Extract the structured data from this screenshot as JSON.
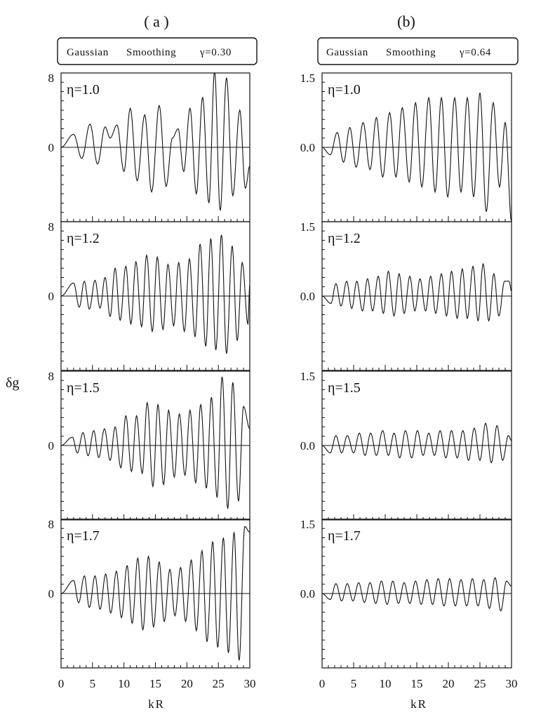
{
  "figure": {
    "ylabel": "δg",
    "xlabel": "kR",
    "x_ticklabels": [
      "0",
      "5",
      "10",
      "15",
      "20",
      "25",
      "30"
    ]
  },
  "columns": [
    {
      "label": "( a )",
      "box": {
        "method": "Gaussian",
        "smoothing": "Smoothing",
        "gamma": "γ=0.30"
      },
      "ytick_top": "8",
      "ytick_zero": "0"
    },
    {
      "label": "(b)",
      "box": {
        "method": "Gaussian",
        "smoothing": "Smoothing",
        "gamma": "γ=0.64"
      },
      "ytick_top": "1.5",
      "ytick_zero": "0.0"
    }
  ],
  "chart_data": [
    {
      "type": "line",
      "column": "a",
      "eta_label": "η=1.0",
      "xlim": [
        0,
        30
      ],
      "ylim": [
        -8,
        8
      ],
      "ytick_labels": [
        "8",
        "0"
      ],
      "series": [
        {
          "x_peaks": [
            0,
            2,
            3.3,
            4.6,
            5.8,
            7,
            7.8,
            8.9,
            10,
            11,
            12.1,
            13.3,
            14.4,
            15.6,
            16.7,
            17.7,
            18.6,
            19.5,
            20.5,
            21.5,
            22.5,
            23.5,
            24.4,
            25.3,
            26.3,
            27.3,
            28.4,
            29.3,
            30
          ],
          "y_peaks": [
            0,
            1.4,
            -1.2,
            2.5,
            -1.8,
            2.2,
            1.0,
            2.4,
            -2.6,
            4.2,
            -3.6,
            3.5,
            -4.8,
            4.5,
            -4.2,
            1.0,
            2.0,
            -2.6,
            4.2,
            -5.0,
            5.4,
            -6.0,
            8.2,
            -6.8,
            7.5,
            -5.2,
            4.0,
            -4.4,
            -2.0
          ]
        }
      ]
    },
    {
      "type": "line",
      "column": "a",
      "eta_label": "η=1.2",
      "xlim": [
        0,
        30
      ],
      "ylim": [
        -8,
        8
      ],
      "ytick_labels": [
        "8",
        "0"
      ],
      "series": [
        {
          "x_peaks": [
            0,
            2,
            2.9,
            3.7,
            4.5,
            5.4,
            6.2,
            7,
            7.8,
            8.6,
            9.4,
            10.3,
            11.1,
            11.9,
            12.8,
            13.6,
            14.5,
            15.3,
            16.2,
            17,
            17.9,
            18.7,
            19.6,
            20.4,
            21.3,
            22.1,
            23,
            23.8,
            24.6,
            25.5,
            26.3,
            27.2,
            28,
            28.8,
            29.7,
            30
          ],
          "y_peaks": [
            0,
            1.4,
            -1.2,
            1.6,
            -1.4,
            1.7,
            -1.3,
            2.0,
            -2.2,
            3.0,
            -2.6,
            3.2,
            -3.0,
            3.7,
            -3.3,
            4.4,
            -3.8,
            4.2,
            -3.6,
            3.4,
            -3.2,
            3.6,
            -3.8,
            4.0,
            -4.4,
            5.6,
            -5.4,
            6.2,
            -5.8,
            6.6,
            -6.2,
            5.4,
            -4.8,
            3.6,
            -3.0,
            1.2
          ]
        }
      ]
    },
    {
      "type": "line",
      "column": "a",
      "eta_label": "η=1.5",
      "xlim": [
        0,
        30
      ],
      "ylim": [
        -8,
        8
      ],
      "ytick_labels": [
        "8",
        "0"
      ],
      "series": [
        {
          "x_peaks": [
            0,
            1.8,
            2.6,
            3.5,
            4.3,
            5.2,
            6,
            6.9,
            7.8,
            8.6,
            9.5,
            10.3,
            11.2,
            12,
            12.9,
            13.7,
            14.6,
            15.4,
            16.3,
            17.1,
            18,
            18.8,
            19.7,
            20.5,
            21.4,
            22.2,
            23.1,
            23.9,
            24.8,
            25.6,
            26.5,
            27.3,
            28.2,
            29,
            30
          ],
          "y_peaks": [
            0,
            0.9,
            -0.8,
            1.4,
            -1.1,
            1.6,
            -1.3,
            1.8,
            -1.6,
            2.0,
            -2.4,
            3.2,
            -2.8,
            3.2,
            -3.0,
            4.6,
            -4.4,
            4.4,
            -4.2,
            3.8,
            -3.4,
            3.4,
            -3.2,
            3.8,
            -4.0,
            4.4,
            -4.6,
            5.2,
            -5.6,
            7.4,
            -6.8,
            6.8,
            -6.0,
            4.2,
            1.8
          ]
        }
      ]
    },
    {
      "type": "line",
      "column": "a",
      "eta_label": "η=1.7",
      "xlim": [
        0,
        30
      ],
      "ylim": [
        -8,
        8
      ],
      "ytick_labels": [
        "8",
        "0"
      ],
      "series": [
        {
          "x_peaks": [
            0,
            2,
            2.8,
            3.7,
            4.5,
            5.4,
            6.2,
            7.1,
            7.9,
            8.8,
            9.6,
            10.5,
            11.3,
            12.2,
            13,
            13.9,
            14.7,
            15.6,
            16.4,
            17.3,
            18.1,
            19,
            19.8,
            20.7,
            21.5,
            22.4,
            23.2,
            24.1,
            24.9,
            25.8,
            26.6,
            27.5,
            28.3,
            29.2,
            30
          ],
          "y_peaks": [
            0,
            1.4,
            -1.0,
            1.9,
            -1.5,
            1.9,
            -1.7,
            2.1,
            -2.1,
            2.4,
            -2.6,
            3.0,
            -3.2,
            3.8,
            -3.9,
            4.0,
            -3.6,
            3.4,
            -3.0,
            2.6,
            -2.4,
            2.8,
            -3.0,
            3.6,
            -4.0,
            4.6,
            -5.2,
            5.6,
            -5.8,
            6.0,
            -6.4,
            6.6,
            -7.2,
            7.2,
            6.6
          ]
        }
      ]
    },
    {
      "type": "line",
      "column": "b",
      "eta_label": "η=1.0",
      "xlim": [
        0,
        30
      ],
      "ylim": [
        -1.5,
        1.5
      ],
      "ytick_labels": [
        "1.5",
        "0.0"
      ],
      "series": [
        {
          "x_peaks": [
            0,
            1.3,
            2.4,
            3.4,
            4.4,
            5.4,
            6.5,
            7.6,
            8.6,
            9.6,
            10.7,
            11.7,
            12.7,
            13.8,
            14.8,
            15.8,
            16.9,
            17.9,
            18.9,
            19.9,
            21,
            22,
            23,
            24,
            25,
            26,
            27.1,
            28.1,
            29,
            30
          ],
          "y_peaks": [
            0,
            -0.15,
            0.3,
            -0.3,
            0.4,
            -0.4,
            0.5,
            -0.45,
            0.6,
            -0.6,
            0.7,
            -0.6,
            0.8,
            -0.7,
            0.9,
            -0.8,
            1.0,
            -0.9,
            1.0,
            -1.0,
            1.0,
            -0.9,
            1.0,
            -1.0,
            1.1,
            -1.3,
            0.9,
            -0.8,
            0.5,
            -1.5
          ]
        }
      ]
    },
    {
      "type": "line",
      "column": "b",
      "eta_label": "η=1.2",
      "xlim": [
        0,
        30
      ],
      "ylim": [
        -1.5,
        1.5
      ],
      "ytick_labels": [
        "1.5",
        "0.0"
      ],
      "series": [
        {
          "x_peaks": [
            0,
            1.4,
            2.2,
            3,
            3.9,
            4.7,
            5.5,
            6.4,
            7.2,
            8,
            8.9,
            9.7,
            10.5,
            11.4,
            12.2,
            13,
            13.9,
            14.7,
            15.5,
            16.4,
            17.2,
            18,
            18.9,
            19.7,
            20.5,
            21.4,
            22.2,
            23,
            23.9,
            24.7,
            25.5,
            26.4,
            27.2,
            28,
            28.9,
            29.6,
            30
          ],
          "y_peaks": [
            0,
            -0.15,
            0.25,
            -0.2,
            0.3,
            -0.25,
            0.3,
            -0.3,
            0.35,
            -0.3,
            0.4,
            -0.35,
            0.5,
            -0.4,
            0.45,
            -0.35,
            0.4,
            -0.3,
            0.35,
            -0.3,
            0.4,
            -0.35,
            0.45,
            -0.4,
            0.5,
            -0.45,
            0.55,
            -0.45,
            0.6,
            -0.5,
            0.65,
            -0.5,
            0.45,
            -0.4,
            0.3,
            0.3,
            0.1
          ]
        }
      ]
    },
    {
      "type": "line",
      "column": "b",
      "eta_label": "η=1.5",
      "xlim": [
        0,
        30
      ],
      "ylim": [
        -1.5,
        1.5
      ],
      "ytick_labels": [
        "1.5",
        "0.0"
      ],
      "series": [
        {
          "x_peaks": [
            0,
            1.3,
            2.2,
            3.1,
            4,
            5,
            5.9,
            6.8,
            7.7,
            8.6,
            9.6,
            10.5,
            11.4,
            12.3,
            13.2,
            14.2,
            15.1,
            16,
            16.9,
            17.8,
            18.7,
            19.6,
            20.5,
            21.4,
            22.3,
            23.2,
            24.1,
            25,
            25.9,
            26.8,
            27.7,
            28.6,
            29.5,
            30
          ],
          "y_peaks": [
            0,
            -0.15,
            0.2,
            -0.15,
            0.2,
            -0.15,
            0.25,
            -0.2,
            0.25,
            -0.2,
            0.3,
            -0.2,
            0.25,
            -0.25,
            0.3,
            -0.25,
            0.3,
            -0.2,
            0.25,
            -0.2,
            0.3,
            -0.25,
            0.3,
            -0.25,
            0.3,
            -0.3,
            0.35,
            -0.3,
            0.45,
            -0.35,
            0.4,
            -0.3,
            0.2,
            0.1
          ]
        }
      ]
    },
    {
      "type": "line",
      "column": "b",
      "eta_label": "η=1.7",
      "xlim": [
        0,
        30
      ],
      "ylim": [
        -1.5,
        1.5
      ],
      "ytick_labels": [
        "1.5",
        "0.0"
      ],
      "series": [
        {
          "x_peaks": [
            0,
            1.3,
            2.2,
            3.1,
            4,
            4.9,
            5.8,
            6.7,
            7.6,
            8.5,
            9.4,
            10.3,
            11.2,
            12.1,
            13,
            13.9,
            14.8,
            15.7,
            16.6,
            17.5,
            18.4,
            19.3,
            20.2,
            21.1,
            22,
            22.9,
            23.8,
            24.7,
            25.6,
            26.5,
            27.4,
            28.3,
            29.2,
            30
          ],
          "y_peaks": [
            0,
            -0.12,
            0.2,
            -0.15,
            0.2,
            -0.15,
            0.22,
            -0.18,
            0.22,
            -0.2,
            0.25,
            -0.22,
            0.25,
            -0.2,
            0.22,
            -0.2,
            0.25,
            -0.22,
            0.28,
            -0.22,
            0.3,
            -0.25,
            0.3,
            -0.25,
            0.28,
            -0.25,
            0.3,
            -0.25,
            0.28,
            -0.3,
            0.32,
            -0.35,
            0.25,
            0.15
          ]
        }
      ]
    }
  ]
}
